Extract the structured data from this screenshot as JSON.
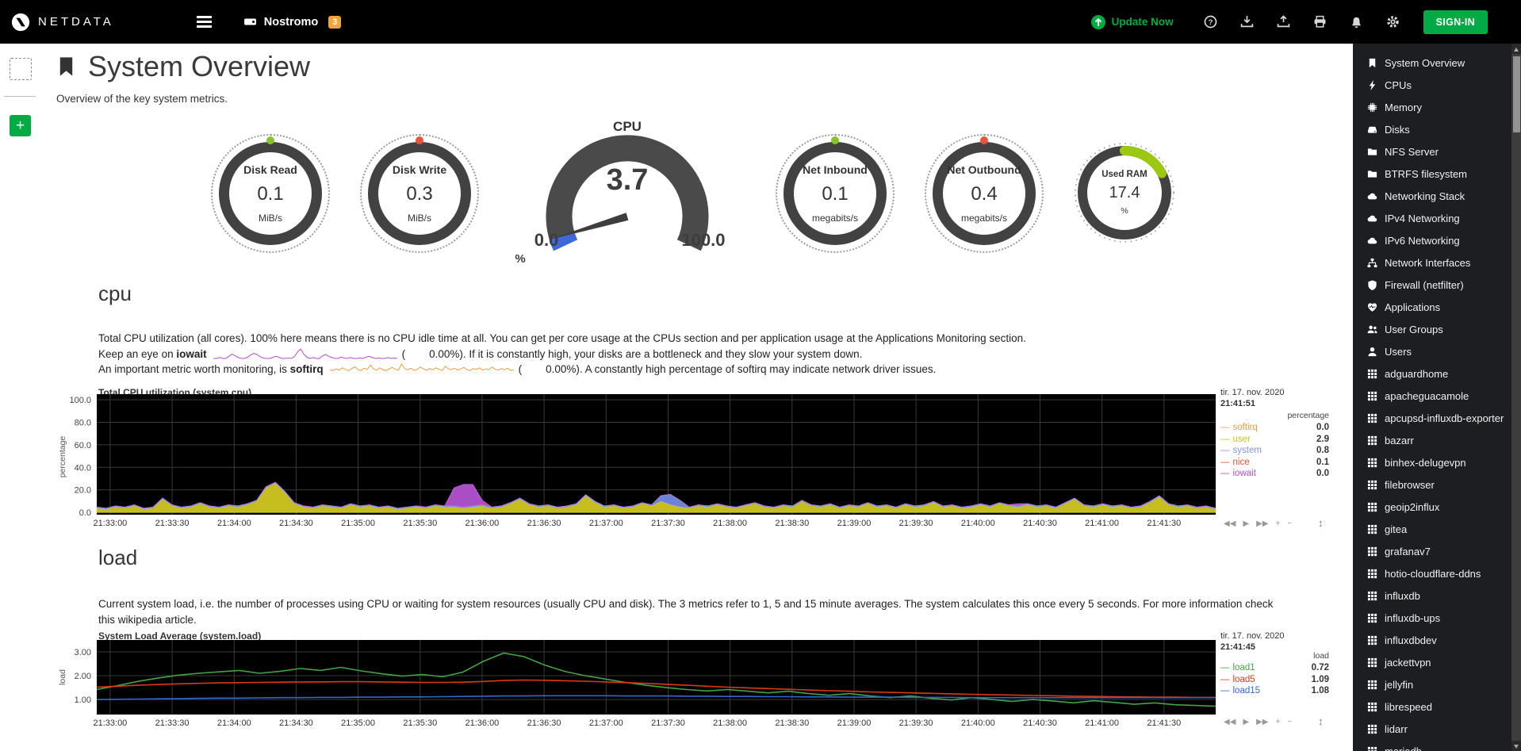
{
  "theme": {
    "green": "#00AB44",
    "badge_orange": "#EFA63C"
  },
  "topbar": {
    "brand": "NETDATA",
    "logo_icon": "logo",
    "node": {
      "icon": "node",
      "label": "Nostromo",
      "badge": "3"
    },
    "update": {
      "icon": "update",
      "label": "Update Now"
    },
    "icons": [
      {
        "name": "help-icon",
        "icon": "question"
      },
      {
        "name": "import-snapshot-icon",
        "icon": "download"
      },
      {
        "name": "export-snapshot-icon",
        "icon": "upload"
      },
      {
        "name": "print-icon",
        "icon": "print"
      },
      {
        "name": "alarms-bell-icon",
        "icon": "bell"
      },
      {
        "name": "settings-gear-icon",
        "icon": "gear"
      }
    ],
    "signin_label": "SIGN-IN"
  },
  "page": {
    "icon": "bookmark",
    "title": "System Overview",
    "subtitle": "Overview of the key system metrics.",
    "add_label": "+"
  },
  "gauges": {
    "left": [
      {
        "label": "Disk Read",
        "value": "0.1",
        "unit": "MiB/s",
        "dot_color": "#86C32B"
      },
      {
        "label": "Disk Write",
        "value": "0.3",
        "unit": "MiB/s",
        "dot_color": "#E8543C"
      }
    ],
    "right": [
      {
        "label": "Net Inbound",
        "value": "0.1",
        "unit": "megabits/s",
        "dot_color": "#86C32B"
      },
      {
        "label": "Net Outbound",
        "value": "0.4",
        "unit": "megabits/s",
        "dot_color": "#E8543C"
      }
    ],
    "cpu": {
      "title": "CPU",
      "value": "3.7",
      "value_num": 3.7,
      "min": 0,
      "max": 100,
      "min_label": "0.0",
      "max_label": "100.0",
      "unit": "%",
      "arc_color": "#4A4A4A",
      "value_color": "#3F68D9",
      "needle_color": "#3E3E3E"
    },
    "ram": {
      "label": "Used RAM",
      "value": "17.4",
      "unit": "%",
      "percent": 17.4,
      "arc_color": "#9CC813",
      "ring_color": "#424242"
    }
  },
  "cpu_section": {
    "heading": "cpu",
    "p1": "Total CPU utilization (all cores). 100% here means there is no CPU idle time at all. You can get per core usage at the CPUs section and per application usage at the Applications Monitoring section.",
    "iowait": {
      "pre": "Keep an eye on ",
      "term": "iowait",
      "open": "(",
      "value": "0.00%",
      "post": "). If it is constantly high, your disks are a bottleneck and they slow your system down."
    },
    "softirq": {
      "pre": "An important metric worth monitoring, is ",
      "term": "softirq",
      "open": "(",
      "value": "0.00%",
      "post": "). A constantly high percentage of softirq may indicate network driver issues."
    }
  },
  "load_section": {
    "heading": "load",
    "p1": "Current system load, i.e. the number of processes using CPU or waiting for system resources (usually CPU and disk). The 3 metrics refer to 1, 5 and 15 minute averages. The system calculates this once every 5 seconds. For more information check",
    "link": "this wikipedia article."
  },
  "chart_toolbar": {
    "rewind": "◀◀",
    "play": "▶",
    "forward": "▶▶",
    "zoom_in": "+",
    "zoom_out": "−",
    "resize": "↕"
  },
  "sidebar": {
    "items": [
      {
        "label": "System Overview",
        "icon": "bookmark"
      },
      {
        "label": "CPUs",
        "icon": "bolt"
      },
      {
        "label": "Memory",
        "icon": "microchip"
      },
      {
        "label": "Disks",
        "icon": "hdd"
      },
      {
        "label": "NFS Server",
        "icon": "folder"
      },
      {
        "label": "BTRFS filesystem",
        "icon": "folder"
      },
      {
        "label": "Networking Stack",
        "icon": "cloud"
      },
      {
        "label": "IPv4 Networking",
        "icon": "cloud"
      },
      {
        "label": "IPv6 Networking",
        "icon": "cloud"
      },
      {
        "label": "Network Interfaces",
        "icon": "sitemap"
      },
      {
        "label": "Firewall (netfilter)",
        "icon": "shield"
      },
      {
        "label": "Applications",
        "icon": "heart"
      },
      {
        "label": "User Groups",
        "icon": "users"
      },
      {
        "label": "Users",
        "icon": "user"
      },
      {
        "label": "adguardhome",
        "icon": "grid"
      },
      {
        "label": "apacheguacamole",
        "icon": "grid"
      },
      {
        "label": "apcupsd-influxdb-exporter",
        "icon": "grid"
      },
      {
        "label": "bazarr",
        "icon": "grid"
      },
      {
        "label": "binhex-delugevpn",
        "icon": "grid"
      },
      {
        "label": "filebrowser",
        "icon": "grid"
      },
      {
        "label": "geoip2influx",
        "icon": "grid"
      },
      {
        "label": "gitea",
        "icon": "grid"
      },
      {
        "label": "grafanav7",
        "icon": "grid"
      },
      {
        "label": "hotio-cloudflare-ddns",
        "icon": "grid"
      },
      {
        "label": "influxdb",
        "icon": "grid"
      },
      {
        "label": "influxdb-ups",
        "icon": "grid"
      },
      {
        "label": "influxdbdev",
        "icon": "grid"
      },
      {
        "label": "jackettvpn",
        "icon": "grid"
      },
      {
        "label": "jellyfin",
        "icon": "grid"
      },
      {
        "label": "librespeed",
        "icon": "grid"
      },
      {
        "label": "lidarr",
        "icon": "grid"
      },
      {
        "label": "mariadb",
        "icon": "grid"
      }
    ]
  },
  "chart_data": {
    "legend_dash": "—",
    "xticks": [
      "21:33:00",
      "21:33:30",
      "21:34:00",
      "21:34:30",
      "21:35:00",
      "21:35:30",
      "21:36:00",
      "21:36:30",
      "21:37:00",
      "21:37:30",
      "21:38:00",
      "21:38:30",
      "21:39:00",
      "21:39:30",
      "21:40:00",
      "21:40:30",
      "21:41:00",
      "21:41:30"
    ],
    "cpu_chart": {
      "type": "area",
      "stacked": true,
      "title": "Total CPU utilization (system.cpu)",
      "date": "tir. 17. nov. 2020",
      "time": "21:41:51",
      "units": "percentage",
      "ylabel": "percentage",
      "ylim": [
        -2,
        105
      ],
      "yticks": [
        0,
        20,
        40,
        60,
        80,
        100
      ],
      "ytick_labels": [
        "0.0",
        "20.0",
        "40.0",
        "60.0",
        "80.0",
        "100.0"
      ],
      "x_first_frac": 0.012,
      "x_step_frac": 0.0554,
      "legend": [
        {
          "name": "softirq",
          "value": "0.0",
          "color": "#F09A3C"
        },
        {
          "name": "user",
          "value": "2.9",
          "color": "#CDC31F"
        },
        {
          "name": "system",
          "value": "0.8",
          "color": "#8094DE"
        },
        {
          "name": "nice",
          "value": "0.1",
          "color": "#E0572F"
        },
        {
          "name": "iowait",
          "value": "0.0",
          "color": "#B24FC8"
        }
      ],
      "series": [
        {
          "name": "user",
          "fill": "#C6BE1E",
          "stroke": "#E3DC2A",
          "values": [
            4,
            3,
            5,
            4,
            6,
            3,
            4,
            12,
            6,
            4,
            5,
            8,
            5,
            4,
            6,
            5,
            7,
            10,
            22,
            26,
            18,
            8,
            5,
            4,
            6,
            5,
            4,
            7,
            5,
            6,
            4,
            5,
            3,
            4,
            5,
            4,
            6,
            5,
            5,
            4,
            5,
            6,
            4,
            5,
            8,
            12,
            7,
            5,
            6,
            4,
            5,
            7,
            15,
            9,
            5,
            6,
            4,
            5,
            8,
            6,
            10,
            7,
            5,
            4,
            6,
            5,
            7,
            5,
            4,
            6,
            8,
            5,
            4,
            6,
            5,
            10,
            6,
            5,
            7,
            4,
            6,
            5,
            8,
            5,
            6,
            4,
            7,
            5,
            6,
            9,
            5,
            6,
            4,
            5,
            7,
            5,
            8,
            6,
            5,
            7,
            5,
            6,
            4,
            8,
            12,
            6,
            5,
            7,
            5,
            6,
            4,
            5,
            9,
            14,
            7,
            5,
            6,
            4,
            5,
            3
          ]
        },
        {
          "name": "system",
          "fill": "#6B82D8",
          "stroke": "#8FA3E8",
          "base": 0.8,
          "length": 120,
          "points": {
            "60": 5,
            "61": 9,
            "62": 6
          }
        },
        {
          "name": "iowait",
          "fill": "#AB4EC6",
          "stroke": "#C86FE2",
          "base": 0,
          "length": 120,
          "points": {
            "38": 16,
            "39": 20,
            "40": 19,
            "41": 4,
            "98": 2
          }
        }
      ]
    },
    "load_chart": {
      "type": "line",
      "title": "System Load Average (system.load)",
      "date": "tir. 17. nov. 2020",
      "time": "21:41:45",
      "units": "load",
      "ylabel": "load",
      "ylim": [
        0.37,
        3.5
      ],
      "yticks": [
        1,
        2,
        3
      ],
      "ytick_labels": [
        "1.00",
        "2.00",
        "3.00"
      ],
      "x_first_frac": 0.012,
      "x_step_frac": 0.0554,
      "legend": [
        {
          "name": "load1",
          "value": "0.72",
          "color": "#44A344"
        },
        {
          "name": "load5",
          "value": "1.09",
          "color": "#DC3912"
        },
        {
          "name": "load15",
          "value": "1.08",
          "color": "#3366CC"
        }
      ],
      "series": [
        {
          "name": "load1",
          "stroke": "#44A344",
          "values": [
            1.42,
            1.58,
            1.76,
            1.9,
            2.02,
            2.1,
            2.16,
            2.22,
            2.1,
            2.18,
            2.3,
            2.22,
            2.35,
            2.2,
            2.08,
            1.98,
            2.05,
            1.95,
            2.15,
            2.6,
            2.95,
            2.8,
            2.45,
            2.18,
            2.0,
            1.86,
            1.72,
            1.6,
            1.5,
            1.42,
            1.36,
            1.42,
            1.35,
            1.28,
            1.35,
            1.25,
            1.18,
            1.25,
            1.15,
            1.08,
            1.15,
            1.05,
            0.98,
            1.08,
            1.0,
            0.92,
            1.0,
            0.94,
            0.86,
            0.95,
            0.88,
            0.8,
            0.86,
            0.78,
            0.75,
            0.72
          ]
        },
        {
          "name": "load5",
          "stroke": "#DC3912",
          "values": [
            1.52,
            1.56,
            1.6,
            1.63,
            1.66,
            1.68,
            1.7,
            1.71,
            1.72,
            1.73,
            1.74,
            1.74,
            1.75,
            1.75,
            1.74,
            1.73,
            1.72,
            1.72,
            1.73,
            1.76,
            1.8,
            1.82,
            1.81,
            1.79,
            1.77,
            1.74,
            1.71,
            1.68,
            1.64,
            1.6,
            1.56,
            1.52,
            1.49,
            1.46,
            1.43,
            1.4,
            1.37,
            1.35,
            1.32,
            1.3,
            1.28,
            1.26,
            1.24,
            1.22,
            1.2,
            1.19,
            1.17,
            1.16,
            1.14,
            1.13,
            1.12,
            1.11,
            1.1,
            1.1,
            1.09,
            1.09
          ]
        },
        {
          "name": "load15",
          "stroke": "#3366CC",
          "values": [
            1.0,
            1.01,
            1.02,
            1.03,
            1.04,
            1.05,
            1.06,
            1.06,
            1.07,
            1.08,
            1.08,
            1.09,
            1.09,
            1.1,
            1.1,
            1.11,
            1.11,
            1.12,
            1.13,
            1.14,
            1.15,
            1.15,
            1.16,
            1.16,
            1.16,
            1.16,
            1.15,
            1.15,
            1.15,
            1.14,
            1.14,
            1.13,
            1.13,
            1.12,
            1.12,
            1.11,
            1.11,
            1.1,
            1.1,
            1.1,
            1.09,
            1.09,
            1.09,
            1.08,
            1.08,
            1.08,
            1.08,
            1.08,
            1.08,
            1.08,
            1.08,
            1.08,
            1.08,
            1.08,
            1.08,
            1.08
          ]
        }
      ]
    },
    "iowait_sparkline": {
      "color": "#B24FC8",
      "values": [
        0,
        0,
        0.2,
        0,
        0,
        0.5,
        1,
        0.6,
        0.2,
        0,
        0,
        0.3,
        0.8,
        1.2,
        0.9,
        0.4,
        0.1,
        0,
        0,
        0.2,
        0.5,
        0.3,
        0,
        0,
        0.1,
        0,
        0.4,
        1.5,
        2.2,
        1.0,
        0.3,
        0,
        0.2,
        0,
        0,
        0.6,
        0.9,
        0.5,
        0.2,
        0,
        0,
        0.3,
        0.1,
        0,
        0.2,
        0,
        0,
        0.1,
        0,
        0.3,
        0.5,
        0.2,
        0,
        0.1,
        0,
        0,
        0.2,
        0,
        0.1,
        0
      ]
    },
    "softirq_sparkline": {
      "color": "#F09A3C",
      "values": [
        1,
        0.8,
        1.2,
        0.9,
        1.5,
        1.1,
        0.7,
        1.3,
        1.8,
        1.0,
        0.8,
        1.4,
        1.1,
        2.2,
        1.2,
        0.9,
        1.5,
        1.0,
        0.8,
        1.2,
        1.6,
        1.1,
        0.9,
        2.5,
        1.3,
        1.0,
        1.4,
        0.8,
        1.1,
        1.7,
        1.2,
        0.9,
        1.3,
        1.0,
        1.5,
        1.1,
        0.8,
        1.9,
        1.2,
        1.0,
        1.4,
        0.9,
        1.2,
        1.6,
        1.0,
        0.8,
        1.3,
        1.1,
        1.5,
        0.9,
        1.2,
        1.0,
        1.7,
        1.1,
        0.9,
        1.3,
        1.0,
        1.4,
        0.8,
        1.0
      ]
    }
  }
}
